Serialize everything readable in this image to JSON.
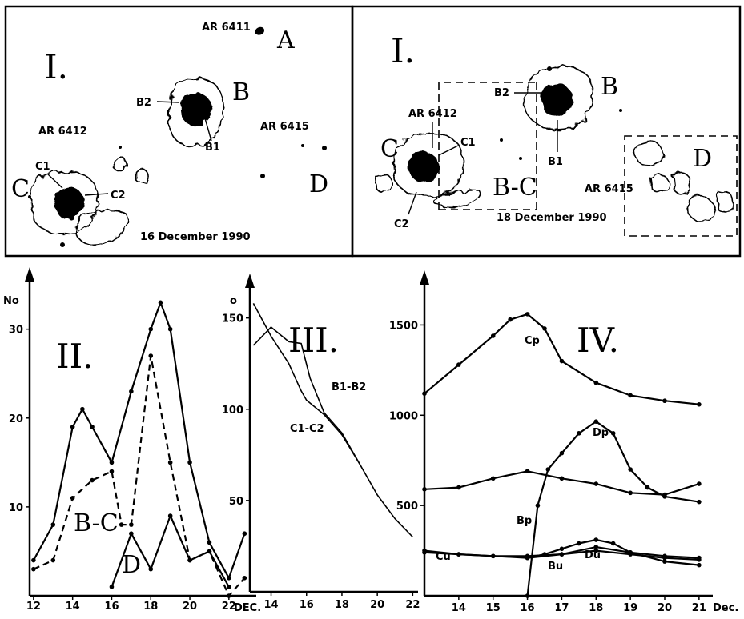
{
  "panel_I_left": {
    "roman": "I.",
    "region_A": "AR 6411",
    "letter_A": "A",
    "letter_B": "B",
    "letter_C": "C",
    "letter_D": "D",
    "label_B1": "B1",
    "label_B2": "B2",
    "label_C1": "C1",
    "label_C2": "C2",
    "region_C": "AR 6412",
    "region_D": "AR 6415",
    "date": "16 December 1990"
  },
  "panel_I_right": {
    "roman": "I.",
    "letter_B": "B",
    "letter_C": "C",
    "letter_D": "D",
    "label_BC": "B-C",
    "label_B1": "B1",
    "label_B2": "B2",
    "label_C1": "C1",
    "label_C2": "C2",
    "region_C": "AR 6412",
    "region_D": "AR 6415",
    "date": "18 December 1990"
  },
  "chart_data": [
    {
      "type": "line",
      "panel": "II.",
      "ylabel": "No",
      "xlabel": "DEC.",
      "x_ticks": [
        "12",
        "14",
        "16",
        "18",
        "20",
        "22"
      ],
      "y_ticks": [
        "10",
        "20",
        "30"
      ],
      "xlim": [
        11.8,
        23.4
      ],
      "ylim": [
        0,
        36
      ],
      "series": [
        {
          "name": "",
          "x": [
            12,
            13,
            14,
            14.5,
            15,
            16,
            17,
            18,
            18.5,
            19,
            20,
            21,
            22,
            22.8
          ],
          "y": [
            4,
            8,
            19,
            21,
            19,
            15,
            23,
            30,
            33,
            30,
            15,
            6,
            2,
            7
          ]
        },
        {
          "name": "B-C",
          "x": [
            12,
            13,
            14,
            15,
            16,
            16.5,
            17,
            18,
            19,
            20,
            21,
            22,
            22.8
          ],
          "y": [
            3,
            4,
            11,
            13,
            14,
            8,
            8,
            27,
            15,
            4,
            5,
            0,
            2
          ]
        },
        {
          "name": "D",
          "x": [
            16,
            17,
            18,
            19,
            20,
            21,
            22
          ],
          "y": [
            1,
            7,
            3,
            9,
            4,
            5,
            1
          ]
        }
      ],
      "labels": [
        "II.",
        "B-C",
        "D"
      ]
    },
    {
      "type": "line",
      "panel": "III.",
      "ylabel": "o",
      "x_ticks": [
        "14",
        "16",
        "18",
        "20",
        "22"
      ],
      "y_ticks": [
        "50",
        "100",
        "150"
      ],
      "xlim": [
        12.8,
        22.3
      ],
      "ylim": [
        0,
        170
      ],
      "series": [
        {
          "name": "B1-B2",
          "x": [
            13,
            14,
            15,
            15.7,
            16.2,
            17,
            18,
            19,
            20,
            21,
            22
          ],
          "y": [
            135,
            145,
            137,
            136,
            117,
            98,
            87,
            70,
            53,
            40,
            30
          ]
        },
        {
          "name": "C1-C2",
          "x": [
            13,
            14,
            15,
            15.7,
            16,
            17,
            18,
            19
          ],
          "y": [
            158,
            140,
            125,
            110,
            105,
            97,
            86,
            70
          ]
        }
      ],
      "labels": [
        "III.",
        "B1-B2",
        "C1-C2"
      ]
    },
    {
      "type": "line",
      "panel": "IV.",
      "xlabel": "Dec.",
      "x_ticks": [
        "14",
        "15",
        "16",
        "17",
        "18",
        "19",
        "20",
        "21"
      ],
      "y_ticks": [
        "500",
        "1000",
        "1500"
      ],
      "xlim": [
        13,
        21.4
      ],
      "ylim": [
        0,
        1750
      ],
      "series": [
        {
          "name": "Cp",
          "x": [
            13,
            14,
            15,
            15.5,
            16,
            16.5,
            17,
            18,
            19,
            20,
            21
          ],
          "y": [
            1120,
            1280,
            1440,
            1530,
            1560,
            1480,
            1300,
            1180,
            1110,
            1080,
            1060
          ]
        },
        {
          "name": "Dp",
          "x": [
            16,
            16.3,
            16.6,
            17,
            17.5,
            18,
            18.5,
            19,
            19.5,
            20,
            21
          ],
          "y": [
            0,
            500,
            700,
            790,
            900,
            965,
            900,
            700,
            600,
            550,
            520
          ]
        },
        {
          "name": "Bp",
          "x": [
            13,
            14,
            15,
            16,
            17,
            18,
            19,
            20,
            21
          ],
          "y": [
            590,
            600,
            650,
            690,
            650,
            620,
            570,
            560,
            620
          ]
        },
        {
          "name": "Cu",
          "x": [
            13,
            14,
            15,
            16,
            17,
            18,
            19,
            20,
            21
          ],
          "y": [
            250,
            230,
            220,
            220,
            230,
            270,
            240,
            220,
            210
          ]
        },
        {
          "name": "Bu",
          "x": [
            13,
            14,
            15,
            16,
            17,
            18,
            19,
            20,
            21
          ],
          "y": [
            240,
            230,
            220,
            210,
            230,
            250,
            230,
            210,
            200
          ]
        },
        {
          "name": "Du",
          "x": [
            16,
            16.5,
            17,
            17.5,
            18,
            18.5,
            19,
            20,
            21
          ],
          "y": [
            210,
            230,
            260,
            290,
            310,
            290,
            240,
            190,
            170
          ]
        }
      ],
      "labels": [
        "IV.",
        "Cp",
        "Dp",
        "Bp",
        "Cu",
        "Bu",
        "Du"
      ]
    }
  ]
}
